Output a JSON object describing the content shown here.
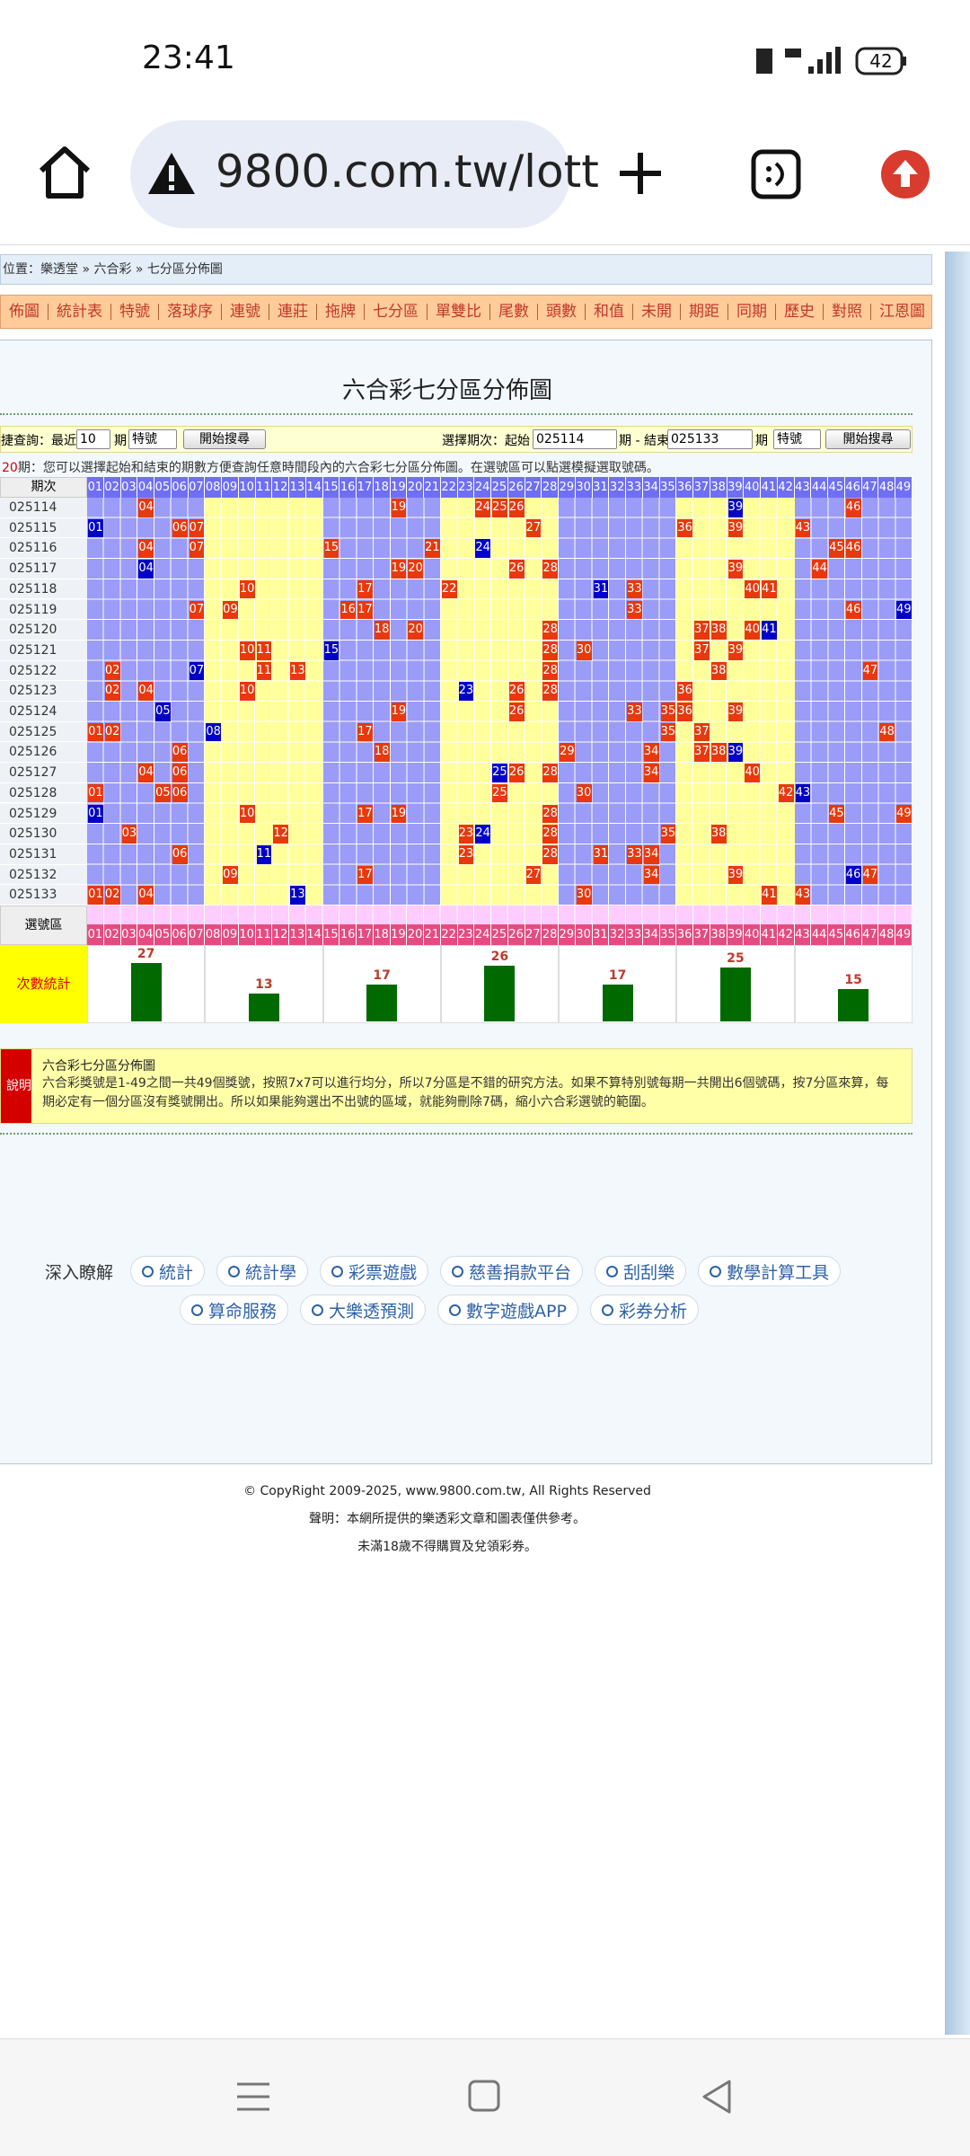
{
  "status_bar": {
    "time": "23:41",
    "battery": "42"
  },
  "browser": {
    "url": "9800.com.tw/lott"
  },
  "breadcrumb": "位置：樂透堂 » 六合彩 » 七分區分佈圖",
  "nav": [
    "佈圖",
    "統計表",
    "特號",
    "落球序",
    "連號",
    "連莊",
    "拖牌",
    "七分區",
    "單雙比",
    "尾數",
    "頭數",
    "和值",
    "未開",
    "期距",
    "同期",
    "歷史",
    "對照",
    "江恩圖"
  ],
  "title": "六合彩七分區分佈圖",
  "query": {
    "quick_label": "捷查詢：最近",
    "quick_count": "10",
    "period_unit": "期",
    "type": "特號",
    "button": "開始搜尋",
    "range_label": "選擇期次：起始",
    "start": "025114",
    "range_mid": "期 - 結束",
    "end": "025133"
  },
  "note": {
    "count": "20",
    "text": "期：您可以選擇起始和結束的期數方便查詢任意時間段內的六合彩七分區分佈圖。在選號區可以點選模擬選取號碼。"
  },
  "table": {
    "period_header": "期次",
    "numbers": [
      "01",
      "02",
      "03",
      "04",
      "05",
      "06",
      "07",
      "08",
      "09",
      "10",
      "11",
      "12",
      "13",
      "14",
      "15",
      "16",
      "17",
      "18",
      "19",
      "20",
      "21",
      "22",
      "23",
      "24",
      "25",
      "26",
      "27",
      "28",
      "29",
      "30",
      "31",
      "32",
      "33",
      "34",
      "35",
      "36",
      "37",
      "38",
      "39",
      "40",
      "41",
      "42",
      "43",
      "44",
      "45",
      "46",
      "47",
      "48",
      "49"
    ],
    "rows": [
      {
        "period": "025114",
        "numbers": [
          "04",
          "19",
          "24",
          "25",
          "26",
          "46"
        ],
        "special": "39"
      },
      {
        "period": "025115",
        "numbers": [
          "06",
          "07",
          "27",
          "36",
          "39",
          "43"
        ],
        "special": "01"
      },
      {
        "period": "025116",
        "numbers": [
          "04",
          "07",
          "15",
          "21",
          "45",
          "46"
        ],
        "special": "24"
      },
      {
        "period": "025117",
        "numbers": [
          "19",
          "20",
          "26",
          "28",
          "39",
          "44"
        ],
        "special": "04"
      },
      {
        "period": "025118",
        "numbers": [
          "10",
          "17",
          "22",
          "33",
          "40",
          "41"
        ],
        "special": "31"
      },
      {
        "period": "025119",
        "numbers": [
          "07",
          "09",
          "16",
          "17",
          "33",
          "46"
        ],
        "special": "49"
      },
      {
        "period": "025120",
        "numbers": [
          "18",
          "20",
          "28",
          "37",
          "38",
          "40"
        ],
        "special": "41"
      },
      {
        "period": "025121",
        "numbers": [
          "10",
          "11",
          "28",
          "30",
          "37",
          "39"
        ],
        "special": "15"
      },
      {
        "period": "025122",
        "numbers": [
          "02",
          "11",
          "13",
          "28",
          "38",
          "47"
        ],
        "special": "07"
      },
      {
        "period": "025123",
        "numbers": [
          "02",
          "04",
          "10",
          "26",
          "28",
          "36"
        ],
        "special": "23"
      },
      {
        "period": "025124",
        "numbers": [
          "19",
          "26",
          "33",
          "35",
          "36",
          "39"
        ],
        "special": "05"
      },
      {
        "period": "025125",
        "numbers": [
          "01",
          "02",
          "17",
          "35",
          "37",
          "48"
        ],
        "special": "08"
      },
      {
        "period": "025126",
        "numbers": [
          "06",
          "18",
          "29",
          "34",
          "37",
          "38"
        ],
        "special": "39"
      },
      {
        "period": "025127",
        "numbers": [
          "04",
          "06",
          "26",
          "28",
          "34",
          "40"
        ],
        "special": "25"
      },
      {
        "period": "025128",
        "numbers": [
          "01",
          "05",
          "06",
          "25",
          "30",
          "42"
        ],
        "special": "43"
      },
      {
        "period": "025129",
        "numbers": [
          "10",
          "17",
          "19",
          "28",
          "45",
          "49"
        ],
        "special": "01"
      },
      {
        "period": "025130",
        "numbers": [
          "03",
          "12",
          "23",
          "28",
          "35",
          "38"
        ],
        "special": "24"
      },
      {
        "period": "025131",
        "numbers": [
          "06",
          "23",
          "28",
          "31",
          "33",
          "34"
        ],
        "special": "11"
      },
      {
        "period": "025132",
        "numbers": [
          "09",
          "17",
          "27",
          "34",
          "39",
          "47"
        ],
        "special": "46"
      },
      {
        "period": "025133",
        "numbers": [
          "01",
          "02",
          "04",
          "30",
          "41",
          "43"
        ],
        "special": "13"
      }
    ],
    "select_label": "選號區",
    "stats_label": "次數統計",
    "zone_counts": [
      27,
      13,
      17,
      26,
      17,
      25,
      15
    ]
  },
  "explanation": {
    "tag": "說明",
    "title": "六合彩七分區分佈圖",
    "text": "六合彩獎號是1-49之間一共49個獎號，按照7x7可以進行均分，所以7分區是不錯的研究方法。如果不算特別號每期一共開出6個號碼，按7分區來算，每期必定有一個分區沒有獎號開出。所以如果能夠選出不出號的區域，就能夠刪除7碼，縮小六合彩選號的範圍。"
  },
  "links": {
    "label": "深入瞭解",
    "items": [
      "統計",
      "統計學",
      "彩票遊戲",
      "慈善捐款平台",
      "刮刮樂",
      "數學計算工具",
      "算命服務",
      "大樂透預測",
      "數字遊戲APP",
      "彩券分析"
    ]
  },
  "footer": [
    "© CopyRight 2009-2025, www.9800.com.tw, All Rights Reserved",
    "聲明：本網所提供的樂透彩文章和圖表僅供參考。",
    "未滿18歲不得購買及兌領彩券。"
  ]
}
